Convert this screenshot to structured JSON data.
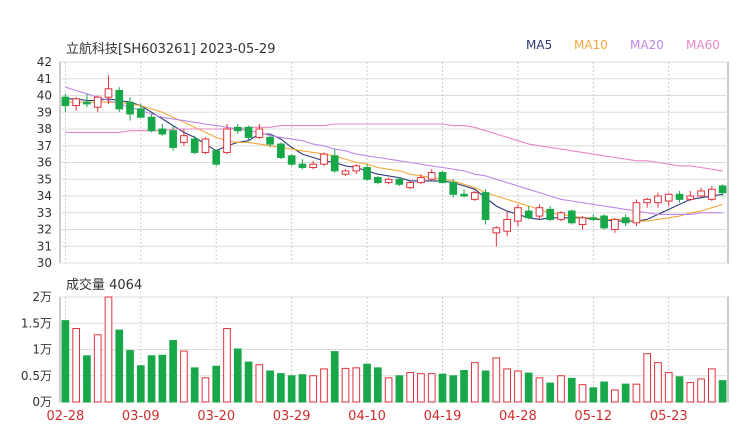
{
  "header": {
    "title": "立航科技[SH603261] 2023-05-29",
    "legend": [
      {
        "label": "MA5",
        "color": "#2d3a7a"
      },
      {
        "label": "MA10",
        "color": "#f2a93b"
      },
      {
        "label": "MA20",
        "color": "#c088e6"
      },
      {
        "label": "MA60",
        "color": "#e688c6"
      }
    ]
  },
  "volume_panel": {
    "title": "成交量 4064"
  },
  "colors": {
    "up": "#e0323c",
    "down": "#18a84a",
    "grid": "#dddddd",
    "axis": "#333333",
    "date_label": "#d22c2c"
  },
  "chart_data": [
    {
      "type": "candlestick",
      "title": "立航科技[SH603261] 2023-05-29",
      "ylim": [
        30,
        42
      ],
      "yticks": [
        30,
        31,
        32,
        33,
        34,
        35,
        36,
        37,
        38,
        39,
        40,
        41,
        42
      ],
      "xtick_labels": [
        "02-28",
        "03-09",
        "03-20",
        "03-29",
        "04-10",
        "04-19",
        "04-28",
        "05-12",
        "05-23"
      ],
      "xtick_index": [
        0,
        7,
        14,
        21,
        28,
        35,
        42,
        49,
        56
      ],
      "grid": true,
      "candles": [
        {
          "date": "02-28",
          "o": 39.9,
          "h": 40.1,
          "l": 39.0,
          "c": 39.4
        },
        {
          "date": "",
          "o": 39.4,
          "h": 39.9,
          "l": 39.1,
          "c": 39.8
        },
        {
          "date": "",
          "o": 39.6,
          "h": 40.1,
          "l": 39.3,
          "c": 39.5
        },
        {
          "date": "",
          "o": 39.3,
          "h": 40.0,
          "l": 39.0,
          "c": 39.9
        },
        {
          "date": "",
          "o": 39.9,
          "h": 41.2,
          "l": 39.5,
          "c": 40.4
        },
        {
          "date": "",
          "o": 40.3,
          "h": 40.5,
          "l": 39.0,
          "c": 39.2
        },
        {
          "date": "",
          "o": 39.6,
          "h": 39.9,
          "l": 38.5,
          "c": 38.9
        },
        {
          "date": "03-09",
          "o": 39.2,
          "h": 39.5,
          "l": 38.7,
          "c": 38.7
        },
        {
          "date": "",
          "o": 38.7,
          "h": 38.9,
          "l": 37.8,
          "c": 37.9
        },
        {
          "date": "",
          "o": 38.0,
          "h": 38.3,
          "l": 37.6,
          "c": 37.7
        },
        {
          "date": "",
          "o": 37.9,
          "h": 38.2,
          "l": 36.7,
          "c": 36.9
        },
        {
          "date": "",
          "o": 37.2,
          "h": 38.0,
          "l": 37.0,
          "c": 37.6
        },
        {
          "date": "",
          "o": 37.4,
          "h": 37.6,
          "l": 36.5,
          "c": 36.6
        },
        {
          "date": "",
          "o": 36.6,
          "h": 37.5,
          "l": 36.5,
          "c": 37.4
        },
        {
          "date": "03-20",
          "o": 36.7,
          "h": 36.8,
          "l": 35.8,
          "c": 35.9
        },
        {
          "date": "",
          "o": 36.6,
          "h": 38.3,
          "l": 36.5,
          "c": 38.0
        },
        {
          "date": "",
          "o": 38.1,
          "h": 38.3,
          "l": 37.7,
          "c": 37.9
        },
        {
          "date": "",
          "o": 38.1,
          "h": 38.2,
          "l": 37.3,
          "c": 37.5
        },
        {
          "date": "",
          "o": 37.5,
          "h": 38.3,
          "l": 37.4,
          "c": 38.0
        },
        {
          "date": "",
          "o": 37.5,
          "h": 37.6,
          "l": 36.9,
          "c": 37.1
        },
        {
          "date": "",
          "o": 37.1,
          "h": 37.2,
          "l": 36.2,
          "c": 36.3
        },
        {
          "date": "03-29",
          "o": 36.4,
          "h": 36.5,
          "l": 35.8,
          "c": 35.9
        },
        {
          "date": "",
          "o": 35.9,
          "h": 36.2,
          "l": 35.6,
          "c": 35.7
        },
        {
          "date": "",
          "o": 35.7,
          "h": 36.1,
          "l": 35.6,
          "c": 35.9
        },
        {
          "date": "",
          "o": 35.9,
          "h": 36.6,
          "l": 35.8,
          "c": 36.5
        },
        {
          "date": "",
          "o": 36.4,
          "h": 36.8,
          "l": 35.4,
          "c": 35.5
        },
        {
          "date": "",
          "o": 35.3,
          "h": 35.6,
          "l": 35.2,
          "c": 35.5
        },
        {
          "date": "",
          "o": 35.5,
          "h": 35.9,
          "l": 35.3,
          "c": 35.8
        },
        {
          "date": "04-10",
          "o": 35.7,
          "h": 35.9,
          "l": 34.9,
          "c": 35.0
        },
        {
          "date": "",
          "o": 35.1,
          "h": 35.2,
          "l": 34.7,
          "c": 34.8
        },
        {
          "date": "",
          "o": 34.8,
          "h": 35.1,
          "l": 34.7,
          "c": 35.0
        },
        {
          "date": "",
          "o": 35.0,
          "h": 35.1,
          "l": 34.6,
          "c": 34.7
        },
        {
          "date": "",
          "o": 34.5,
          "h": 34.9,
          "l": 34.4,
          "c": 34.8
        },
        {
          "date": "",
          "o": 34.8,
          "h": 35.3,
          "l": 34.7,
          "c": 35.1
        },
        {
          "date": "",
          "o": 35.0,
          "h": 35.6,
          "l": 34.9,
          "c": 35.4
        },
        {
          "date": "04-19",
          "o": 35.4,
          "h": 35.5,
          "l": 34.8,
          "c": 34.8
        },
        {
          "date": "",
          "o": 34.8,
          "h": 35.0,
          "l": 33.9,
          "c": 34.1
        },
        {
          "date": "",
          "o": 34.1,
          "h": 34.4,
          "l": 33.9,
          "c": 34.0
        },
        {
          "date": "",
          "o": 33.8,
          "h": 34.3,
          "l": 33.7,
          "c": 34.2
        },
        {
          "date": "",
          "o": 34.2,
          "h": 34.4,
          "l": 32.3,
          "c": 32.6
        },
        {
          "date": "",
          "o": 31.8,
          "h": 32.2,
          "l": 31.0,
          "c": 32.1
        },
        {
          "date": "",
          "o": 31.9,
          "h": 33.1,
          "l": 31.6,
          "c": 32.6
        },
        {
          "date": "04-28",
          "o": 32.5,
          "h": 33.5,
          "l": 32.2,
          "c": 33.3
        },
        {
          "date": "",
          "o": 33.1,
          "h": 33.4,
          "l": 32.6,
          "c": 32.7
        },
        {
          "date": "",
          "o": 32.8,
          "h": 33.5,
          "l": 32.6,
          "c": 33.3
        },
        {
          "date": "",
          "o": 33.2,
          "h": 33.4,
          "l": 32.5,
          "c": 32.6
        },
        {
          "date": "",
          "o": 32.6,
          "h": 33.1,
          "l": 32.5,
          "c": 33.0
        },
        {
          "date": "",
          "o": 33.1,
          "h": 33.2,
          "l": 32.3,
          "c": 32.4
        },
        {
          "date": "",
          "o": 32.3,
          "h": 32.8,
          "l": 32.0,
          "c": 32.7
        },
        {
          "date": "05-12",
          "o": 32.7,
          "h": 32.9,
          "l": 32.5,
          "c": 32.6
        },
        {
          "date": "",
          "o": 32.8,
          "h": 32.9,
          "l": 32.0,
          "c": 32.1
        },
        {
          "date": "",
          "o": 32.0,
          "h": 32.7,
          "l": 31.8,
          "c": 32.6
        },
        {
          "date": "",
          "o": 32.7,
          "h": 32.9,
          "l": 32.2,
          "c": 32.4
        },
        {
          "date": "",
          "o": 32.4,
          "h": 33.8,
          "l": 32.2,
          "c": 33.6
        },
        {
          "date": "",
          "o": 33.6,
          "h": 33.9,
          "l": 33.3,
          "c": 33.8
        },
        {
          "date": "",
          "o": 33.6,
          "h": 34.2,
          "l": 33.3,
          "c": 34.0
        },
        {
          "date": "05-23",
          "o": 33.7,
          "h": 34.2,
          "l": 33.4,
          "c": 34.1
        },
        {
          "date": "",
          "o": 34.1,
          "h": 34.3,
          "l": 33.6,
          "c": 33.8
        },
        {
          "date": "",
          "o": 33.8,
          "h": 34.3,
          "l": 33.7,
          "c": 34.0
        },
        {
          "date": "",
          "o": 34.0,
          "h": 34.5,
          "l": 33.9,
          "c": 34.3
        },
        {
          "date": "",
          "o": 33.8,
          "h": 34.6,
          "l": 33.7,
          "c": 34.4
        },
        {
          "date": "05-29",
          "o": 34.6,
          "h": 34.7,
          "l": 34.0,
          "c": 34.2
        }
      ],
      "series": [
        {
          "name": "MA5",
          "color": "#2d3a7a",
          "values": [
            39.8,
            39.8,
            39.7,
            39.7,
            39.8,
            39.7,
            39.6,
            39.4,
            39.0,
            38.6,
            38.2,
            37.8,
            37.5,
            37.1,
            36.7,
            37.0,
            37.2,
            37.3,
            37.7,
            37.7,
            37.4,
            36.9,
            36.5,
            36.3,
            36.1,
            36.0,
            35.8,
            35.7,
            35.5,
            35.3,
            35.2,
            35.1,
            34.9,
            34.9,
            34.9,
            34.9,
            34.8,
            34.6,
            34.4,
            33.9,
            33.4,
            33.1,
            32.9,
            32.7,
            32.6,
            32.7,
            32.7,
            32.7,
            32.7,
            32.6,
            32.6,
            32.5,
            32.5,
            32.5,
            32.6,
            32.9,
            33.2,
            33.5,
            33.8,
            33.9,
            34.0,
            34.1
          ]
        },
        {
          "name": "MA10",
          "color": "#f2a93b",
          "values": [
            39.6,
            39.6,
            39.6,
            39.6,
            39.6,
            39.6,
            39.5,
            39.4,
            39.2,
            39.0,
            38.7,
            38.4,
            38.1,
            37.8,
            37.5,
            37.3,
            37.2,
            37.2,
            37.1,
            37.0,
            36.9,
            36.8,
            36.7,
            36.6,
            36.5,
            36.4,
            36.2,
            36.0,
            35.9,
            35.7,
            35.6,
            35.5,
            35.3,
            35.2,
            35.1,
            35.0,
            34.9,
            34.7,
            34.5,
            34.2,
            34.0,
            33.8,
            33.6,
            33.4,
            33.2,
            33.0,
            32.9,
            32.8,
            32.7,
            32.7,
            32.6,
            32.6,
            32.6,
            32.5,
            32.5,
            32.6,
            32.7,
            32.8,
            33.0,
            33.1,
            33.3,
            33.5
          ]
        },
        {
          "name": "MA20",
          "color": "#c088e6",
          "values": [
            40.5,
            40.3,
            40.1,
            39.9,
            39.7,
            39.5,
            39.3,
            39.1,
            38.9,
            38.7,
            38.6,
            38.5,
            38.4,
            38.3,
            38.2,
            38.1,
            38.0,
            37.9,
            37.8,
            37.6,
            37.5,
            37.4,
            37.3,
            37.1,
            37.0,
            36.8,
            36.7,
            36.5,
            36.4,
            36.3,
            36.2,
            36.1,
            36.0,
            35.9,
            35.8,
            35.7,
            35.6,
            35.5,
            35.3,
            35.2,
            35.0,
            34.8,
            34.6,
            34.4,
            34.2,
            34.0,
            33.8,
            33.7,
            33.6,
            33.5,
            33.4,
            33.3,
            33.2,
            33.1,
            33.0,
            32.9,
            32.9,
            32.9,
            32.9,
            33.0,
            33.0,
            33.0
          ]
        },
        {
          "name": "MA60",
          "color": "#e688c6",
          "values": [
            37.8,
            37.8,
            37.8,
            37.8,
            37.8,
            37.8,
            37.9,
            37.9,
            37.9,
            37.9,
            38.0,
            38.0,
            38.0,
            38.0,
            38.0,
            38.0,
            38.0,
            38.1,
            38.1,
            38.1,
            38.2,
            38.2,
            38.2,
            38.2,
            38.2,
            38.3,
            38.3,
            38.3,
            38.3,
            38.3,
            38.3,
            38.3,
            38.3,
            38.3,
            38.3,
            38.3,
            38.2,
            38.2,
            38.1,
            37.9,
            37.7,
            37.5,
            37.3,
            37.1,
            37.0,
            36.9,
            36.8,
            36.7,
            36.6,
            36.5,
            36.4,
            36.3,
            36.2,
            36.1,
            36.1,
            36.0,
            35.9,
            35.8,
            35.8,
            35.7,
            35.6,
            35.5
          ]
        }
      ]
    },
    {
      "type": "bar",
      "title": "成交量 4064",
      "ylim": [
        0,
        20000
      ],
      "ytick_values": [
        0,
        5000,
        10000,
        15000,
        20000
      ],
      "ytick_labels": [
        "0万",
        "0.5万",
        "1万",
        "1.5万",
        "2万"
      ],
      "values": [
        15500,
        14000,
        8800,
        12800,
        20000,
        13700,
        9800,
        6900,
        8800,
        8900,
        11700,
        9700,
        6500,
        4600,
        6800,
        14000,
        10100,
        7600,
        7100,
        5900,
        5400,
        5000,
        5200,
        5000,
        6300,
        9600,
        6400,
        6500,
        7200,
        6500,
        4600,
        5000,
        5600,
        5400,
        5400,
        5300,
        5000,
        6000,
        7500,
        5900,
        8400,
        6300,
        5900,
        5500,
        4600,
        3600,
        5000,
        4500,
        3300,
        2700,
        3800,
        2300,
        3400,
        3400,
        9200,
        7500,
        5600,
        4800,
        3700,
        4400,
        6300,
        4064
      ]
    }
  ]
}
